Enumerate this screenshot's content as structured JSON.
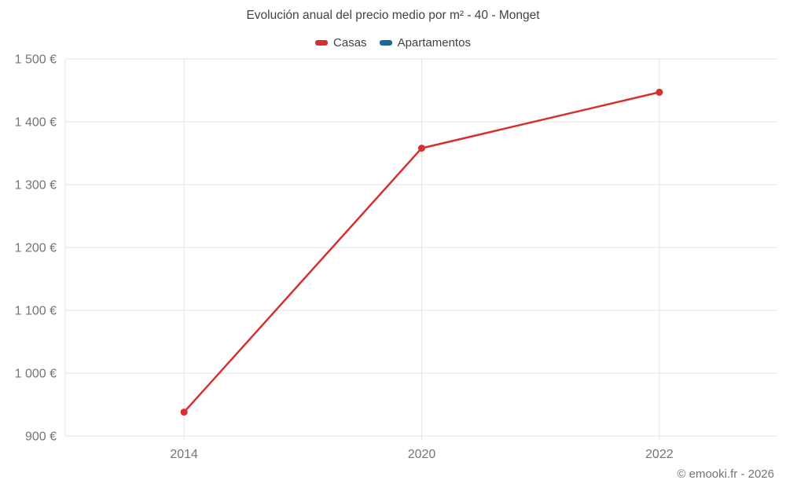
{
  "chart": {
    "title": "Evolución anual del precio medio por m² - 40 - Monget",
    "footer": "© emooki.fr - 2026"
  },
  "chart_data": {
    "type": "line",
    "title": "Evolución anual del precio medio por m² - 40 - Monget",
    "categories": [
      "2014",
      "2020",
      "2022"
    ],
    "series": [
      {
        "name": "Casas",
        "color": "#d5302e",
        "values": [
          938,
          1358,
          1447
        ]
      },
      {
        "name": "Apartamentos",
        "color": "#17699e",
        "values": [
          null,
          null,
          null
        ]
      }
    ],
    "xlabel": "",
    "ylabel": "",
    "ylim": [
      900,
      1500
    ],
    "ytick_step": 100,
    "ytick_labels": [
      "900 €",
      "1 000 €",
      "1 100 €",
      "1 200 €",
      "1 300 €",
      "1 400 €",
      "1 500 €"
    ],
    "grid": true,
    "legend_position": "top",
    "colors": {
      "grid": "#e6e6e6",
      "axis_text": "#757575",
      "title_text": "#424242",
      "background": "#ffffff"
    }
  }
}
